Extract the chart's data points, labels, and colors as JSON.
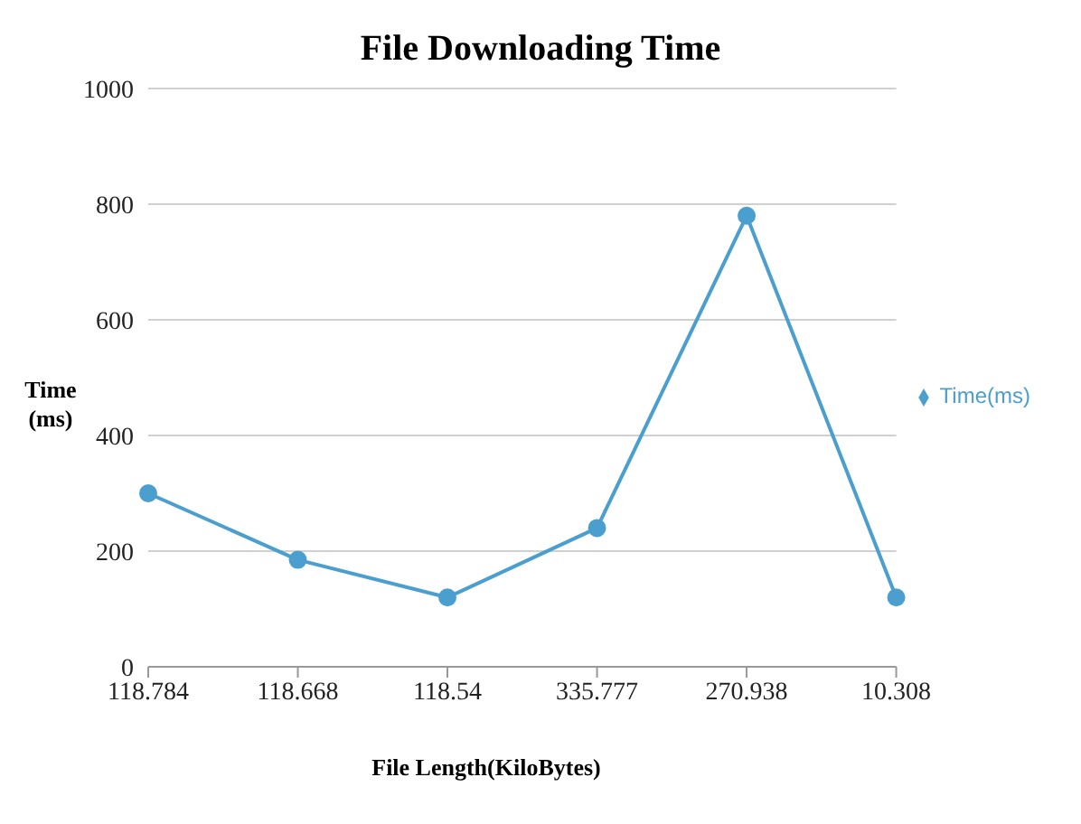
{
  "chart_data": {
    "type": "line",
    "title": "File Downloading Time",
    "xlabel": "File Length(KiloBytes)",
    "ylabel": "Time (ms)",
    "categories": [
      "118.784",
      "118.668",
      "118.54",
      "335.777",
      "270.938",
      "10.308"
    ],
    "series": [
      {
        "name": "Time(ms)",
        "color": "#4a9fcf",
        "values": [
          300,
          185,
          120,
          240,
          780,
          120
        ]
      }
    ],
    "ylim": [
      0,
      1000
    ],
    "yticks": [
      0,
      200,
      400,
      600,
      800,
      1000
    ],
    "grid": "y",
    "legend": "right",
    "marker": "circle"
  }
}
